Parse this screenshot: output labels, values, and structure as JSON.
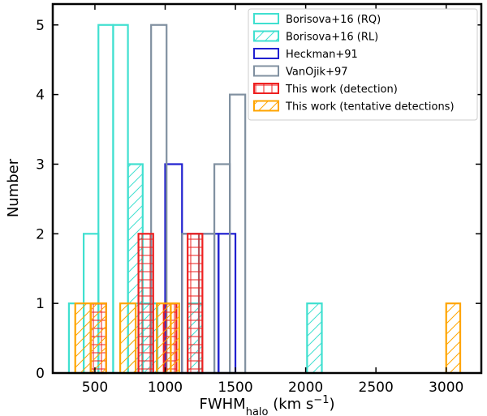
{
  "chart_data": {
    "type": "bar",
    "title": "",
    "xlabel": {
      "main": "FWHM",
      "sub": "halo",
      "unit_pre": " (km s",
      "sup": "−1",
      "unit_post": ")"
    },
    "ylabel": "Number",
    "xlim": [
      200,
      3250
    ],
    "ylim": [
      0,
      5.3
    ],
    "xticks": [
      500,
      1000,
      1500,
      2000,
      2500,
      3000
    ],
    "yticks": [
      0,
      1,
      2,
      3,
      4,
      5
    ],
    "grid": false,
    "legend_position": "top-right",
    "series": [
      {
        "name": "Borisova+16 (RQ)",
        "color": "#40e0d0",
        "hatch": "none",
        "bins": [
          {
            "x0": 315,
            "x1": 420,
            "value": 1
          },
          {
            "x0": 420,
            "x1": 525,
            "value": 2
          },
          {
            "x0": 525,
            "x1": 630,
            "value": 5
          },
          {
            "x0": 630,
            "x1": 735,
            "value": 5
          },
          {
            "x0": 735,
            "x1": 840,
            "value": 1
          },
          {
            "x0": 840,
            "x1": 945,
            "value": 1
          }
        ]
      },
      {
        "name": "Borisova+16 (RL)",
        "color": "#40e0d0",
        "hatch": "diagonal",
        "bins": [
          {
            "x0": 735,
            "x1": 840,
            "value": 3
          },
          {
            "x0": 840,
            "x1": 945,
            "value": 1
          },
          {
            "x0": 1160,
            "x1": 1265,
            "value": 1
          },
          {
            "x0": 2010,
            "x1": 2115,
            "value": 1
          }
        ]
      },
      {
        "name": "Heckman+91",
        "color": "#2020d0",
        "hatch": "none",
        "bins": [
          {
            "x0": 1000,
            "x1": 1120,
            "value": 3
          },
          {
            "x0": 1120,
            "x1": 1380,
            "value": 2
          },
          {
            "x0": 1380,
            "x1": 1500,
            "value": 2
          }
        ]
      },
      {
        "name": "VanOjik+97",
        "color": "#8090a0",
        "hatch": "none",
        "bins": [
          {
            "x0": 900,
            "x1": 1010,
            "value": 5
          },
          {
            "x0": 1120,
            "x1": 1240,
            "value": 2
          },
          {
            "x0": 1240,
            "x1": 1350,
            "value": 2
          },
          {
            "x0": 1350,
            "x1": 1460,
            "value": 3
          },
          {
            "x0": 1460,
            "x1": 1570,
            "value": 4
          }
        ]
      },
      {
        "name": "This work (detection)",
        "color": "#ee2020",
        "hatch": "grid",
        "bins": [
          {
            "x0": 470,
            "x1": 580,
            "value": 1
          },
          {
            "x0": 810,
            "x1": 915,
            "value": 2
          },
          {
            "x0": 990,
            "x1": 1080,
            "value": 1
          },
          {
            "x0": 1160,
            "x1": 1265,
            "value": 2
          }
        ]
      },
      {
        "name": "This work (tentative detections)",
        "color": "#ffa500",
        "hatch": "diagonal",
        "bins": [
          {
            "x0": 360,
            "x1": 470,
            "value": 1
          },
          {
            "x0": 470,
            "x1": 580,
            "value": 1
          },
          {
            "x0": 680,
            "x1": 790,
            "value": 1
          },
          {
            "x0": 940,
            "x1": 1040,
            "value": 1
          },
          {
            "x0": 1040,
            "x1": 1100,
            "value": 1
          },
          {
            "x0": 3000,
            "x1": 3100,
            "value": 1
          }
        ]
      }
    ]
  }
}
